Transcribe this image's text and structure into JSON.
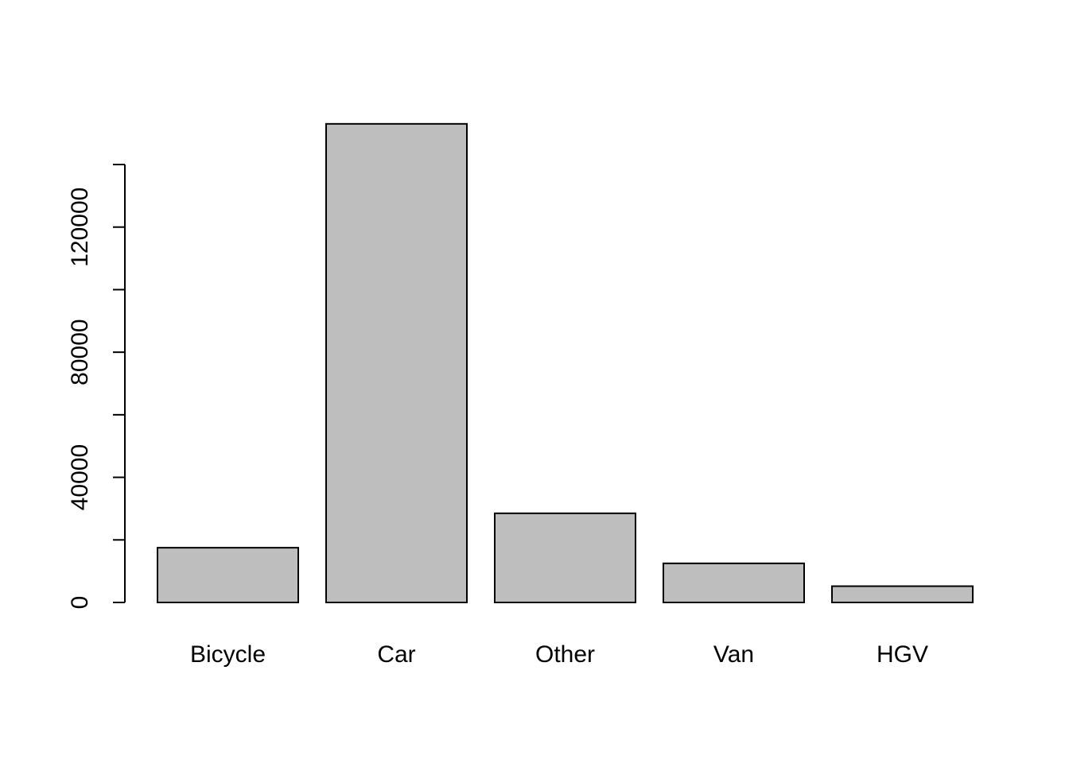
{
  "chart_data": {
    "type": "bar",
    "title": "",
    "xlabel": "",
    "ylabel": "",
    "categories": [
      "Bicycle",
      "Car",
      "Other",
      "Van",
      "HGV"
    ],
    "values": [
      17500,
      153000,
      28500,
      12500,
      5200
    ],
    "ylim": [
      0,
      153000
    ],
    "y_axis_max_tick": 140000,
    "y_major_ticks": [
      0,
      40000,
      80000,
      120000
    ],
    "y_major_tick_labels": [
      "0",
      "40000",
      "80000",
      "120000"
    ],
    "y_minor_ticks": [
      20000,
      60000,
      100000,
      140000
    ],
    "bar_fill": "#bebebe",
    "bar_stroke": "#000000",
    "grid": false,
    "legend": "none"
  }
}
